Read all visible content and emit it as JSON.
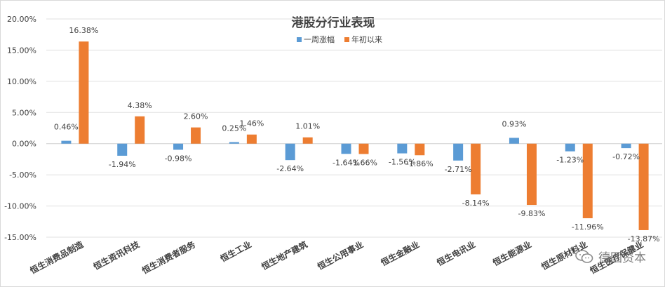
{
  "chart_data": {
    "type": "bar",
    "title": "港股分行业表现",
    "categories": [
      "恒生消费品制造",
      "恒生资讯科技",
      "恒生消费者服务",
      "恒生工业",
      "恒生地产建筑",
      "恒生公用事业",
      "恒生金融业",
      "恒生电讯业",
      "恒生能源业",
      "恒生原材料业",
      "恒生医疗保健业"
    ],
    "series": [
      {
        "name": "一周涨幅",
        "color": "#5b9bd5",
        "values": [
          0.46,
          -1.94,
          -0.98,
          0.25,
          -2.64,
          -1.64,
          -1.56,
          -2.71,
          0.93,
          -1.23,
          -0.72
        ],
        "labels": [
          "0.46%",
          "-1.94%",
          "-0.98%",
          "0.25%",
          "-2.64%",
          "-1.64%",
          "-1.56%",
          "-2.71%",
          "0.93%",
          "-1.23%",
          "-0.72%"
        ]
      },
      {
        "name": "年初以来",
        "color": "#ed7d31",
        "values": [
          16.38,
          4.38,
          2.6,
          1.46,
          1.01,
          -1.66,
          -1.86,
          -8.14,
          -9.83,
          -11.96,
          -13.87
        ],
        "labels": [
          "16.38%",
          "4.38%",
          "2.60%",
          "1.46%",
          "1.01%",
          "-1.66%",
          "-1.86%",
          "-8.14%",
          "-9.83%",
          "-11.96%",
          "-13.87%"
        ]
      }
    ],
    "ylim": [
      -15,
      20
    ],
    "yticks": [
      "-15.00%",
      "-10.00%",
      "-5.00%",
      "0.00%",
      "5.00%",
      "10.00%",
      "15.00%",
      "20.00%"
    ],
    "ytick_values": [
      -15,
      -10,
      -5,
      0,
      5,
      10,
      15,
      20
    ],
    "grid": true,
    "legend": "top-center"
  },
  "watermark": {
    "text": "德图资本"
  }
}
